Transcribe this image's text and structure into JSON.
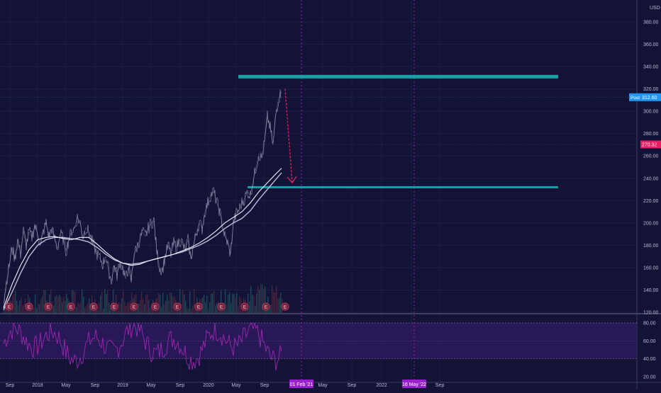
{
  "chart_data": {
    "type": "line",
    "currency": "USD",
    "price_axis": {
      "ticks": [
        "380.00",
        "360.00",
        "340.00",
        "320.00",
        "300.00",
        "280.00",
        "260.00",
        "240.00",
        "220.00",
        "200.00",
        "180.00",
        "160.00",
        "140.00",
        "120.00"
      ],
      "range": [
        118,
        402
      ]
    },
    "time_axis": {
      "labels": [
        "Sep",
        "2018",
        "May",
        "Sep",
        "2019",
        "May",
        "Sep",
        "2020",
        "May",
        "Sep",
        "May",
        "Sep",
        "2022",
        "Sep"
      ],
      "marker_labels": [
        "01 Feb '21",
        "16 May '22"
      ]
    },
    "badges": {
      "post_label": "Post",
      "post_value": "312.60",
      "post_color": "#2196f3",
      "close_value": "270.32",
      "close_color": "#e91e63"
    },
    "resistance_level": 331,
    "support_level": 232,
    "arrow": {
      "from": 320,
      "to": 236,
      "color": "#e91e63"
    },
    "earnings_marker": "E",
    "price_series": [
      [
        0,
        128
      ],
      [
        4,
        147
      ],
      [
        8,
        162
      ],
      [
        12,
        178
      ],
      [
        16,
        168
      ],
      [
        20,
        185
      ],
      [
        24,
        172
      ],
      [
        28,
        193
      ],
      [
        32,
        180
      ],
      [
        36,
        192
      ],
      [
        40,
        187
      ],
      [
        44,
        198
      ],
      [
        48,
        190
      ],
      [
        52,
        180
      ],
      [
        56,
        192
      ],
      [
        60,
        200
      ],
      [
        64,
        188
      ],
      [
        68,
        195
      ],
      [
        72,
        186
      ],
      [
        76,
        177
      ],
      [
        80,
        190
      ],
      [
        84,
        186
      ],
      [
        88,
        175
      ],
      [
        92,
        185
      ],
      [
        96,
        193
      ],
      [
        100,
        195
      ],
      [
        104,
        205
      ],
      [
        108,
        200
      ],
      [
        112,
        187
      ],
      [
        116,
        196
      ],
      [
        120,
        192
      ],
      [
        124,
        185
      ],
      [
        128,
        178
      ],
      [
        132,
        172
      ],
      [
        136,
        168
      ],
      [
        140,
        163
      ],
      [
        144,
        170
      ],
      [
        148,
        158
      ],
      [
        152,
        148
      ],
      [
        156,
        162
      ],
      [
        160,
        153
      ],
      [
        164,
        165
      ],
      [
        168,
        160
      ],
      [
        172,
        150
      ],
      [
        176,
        160
      ],
      [
        180,
        148
      ],
      [
        184,
        172
      ],
      [
        188,
        178
      ],
      [
        192,
        185
      ],
      [
        196,
        192
      ],
      [
        200,
        188
      ],
      [
        204,
        195
      ],
      [
        208,
        200
      ],
      [
        212,
        202
      ],
      [
        216,
        175
      ],
      [
        220,
        160
      ],
      [
        224,
        158
      ],
      [
        228,
        170
      ],
      [
        232,
        180
      ],
      [
        236,
        172
      ],
      [
        240,
        182
      ],
      [
        244,
        178
      ],
      [
        248,
        185
      ],
      [
        252,
        182
      ],
      [
        256,
        175
      ],
      [
        260,
        185
      ],
      [
        264,
        168
      ],
      [
        268,
        180
      ],
      [
        272,
        192
      ],
      [
        276,
        200
      ],
      [
        280,
        195
      ],
      [
        284,
        210
      ],
      [
        288,
        218
      ],
      [
        292,
        225
      ],
      [
        296,
        228
      ],
      [
        300,
        220
      ],
      [
        304,
        212
      ],
      [
        308,
        200
      ],
      [
        312,
        188
      ],
      [
        316,
        182
      ],
      [
        320,
        172
      ],
      [
        324,
        200
      ],
      [
        328,
        208
      ],
      [
        332,
        212
      ],
      [
        336,
        218
      ],
      [
        340,
        222
      ],
      [
        344,
        228
      ],
      [
        348,
        225
      ],
      [
        352,
        238
      ],
      [
        356,
        250
      ],
      [
        360,
        262
      ],
      [
        364,
        258
      ],
      [
        368,
        272
      ],
      [
        372,
        295
      ],
      [
        376,
        285
      ],
      [
        380,
        270
      ],
      [
        384,
        298
      ],
      [
        388,
        312
      ],
      [
        392,
        318
      ]
    ],
    "ma_fast": [
      [
        0,
        124
      ],
      [
        12,
        145
      ],
      [
        24,
        162
      ],
      [
        36,
        176
      ],
      [
        48,
        185
      ],
      [
        60,
        187
      ],
      [
        72,
        188
      ],
      [
        84,
        186
      ],
      [
        96,
        185
      ],
      [
        108,
        187
      ],
      [
        120,
        187
      ],
      [
        132,
        181
      ],
      [
        144,
        174
      ],
      [
        156,
        168
      ],
      [
        168,
        164
      ],
      [
        180,
        162
      ],
      [
        192,
        163
      ],
      [
        204,
        166
      ],
      [
        216,
        168
      ],
      [
        228,
        170
      ],
      [
        240,
        172
      ],
      [
        252,
        175
      ],
      [
        264,
        178
      ],
      [
        276,
        182
      ],
      [
        288,
        187
      ],
      [
        300,
        193
      ],
      [
        312,
        200
      ],
      [
        324,
        205
      ],
      [
        336,
        210
      ],
      [
        348,
        218
      ],
      [
        360,
        228
      ],
      [
        372,
        236
      ],
      [
        384,
        244
      ],
      [
        392,
        249
      ]
    ],
    "ma_slow": [
      [
        0,
        122
      ],
      [
        12,
        138
      ],
      [
        24,
        155
      ],
      [
        36,
        170
      ],
      [
        48,
        180
      ],
      [
        60,
        185
      ],
      [
        72,
        187
      ],
      [
        84,
        187
      ],
      [
        96,
        186
      ],
      [
        108,
        185
      ],
      [
        120,
        183
      ],
      [
        132,
        178
      ],
      [
        144,
        172
      ],
      [
        156,
        167
      ],
      [
        168,
        164
      ],
      [
        180,
        163
      ],
      [
        192,
        164
      ],
      [
        204,
        166
      ],
      [
        216,
        168
      ],
      [
        228,
        170
      ],
      [
        240,
        172
      ],
      [
        252,
        174
      ],
      [
        264,
        177
      ],
      [
        276,
        180
      ],
      [
        288,
        184
      ],
      [
        300,
        189
      ],
      [
        312,
        195
      ],
      [
        324,
        200
      ],
      [
        336,
        204
      ],
      [
        348,
        211
      ],
      [
        360,
        221
      ],
      [
        372,
        230
      ],
      [
        384,
        239
      ],
      [
        392,
        245
      ]
    ],
    "earnings_x": [
      8,
      36,
      63,
      95,
      127,
      156,
      184,
      214,
      245,
      275,
      307,
      340,
      370,
      397
    ],
    "rsi": {
      "ticks": [
        "80.00",
        "60.00",
        "40.00",
        "20.00"
      ],
      "upper": 80,
      "lower": 40,
      "band_color": "#2e1a5e",
      "line_color": "#9c27b0"
    },
    "colors": {
      "background": "#131338",
      "level_line": "#17a2a8",
      "dashed_marker": "#9c27b0",
      "price_line": "#e8e8f0"
    }
  }
}
